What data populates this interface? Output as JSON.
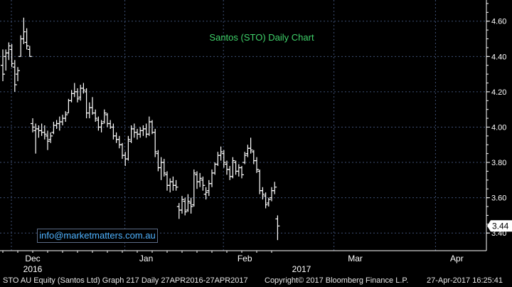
{
  "chart_data": {
    "type": "ohlc",
    "title": "Santos (STO) Daily Chart",
    "ylim": [
      3.3,
      4.72
    ],
    "y_ticks": [
      3.4,
      3.6,
      3.8,
      4.0,
      4.2,
      4.4,
      4.6
    ],
    "y_tick_labels": [
      "3.40",
      "3.60",
      "3.80",
      "4.00",
      "4.20",
      "4.40",
      "4.60"
    ],
    "last_price_label": "3.44",
    "last_price": 3.44,
    "x_month_labels": [
      {
        "label": "Dec",
        "index": 10
      },
      {
        "label": "Jan",
        "index": 48
      },
      {
        "label": "Feb",
        "index": 81
      },
      {
        "label": "Mar",
        "index": 118
      },
      {
        "label": "Apr",
        "index": 152
      }
    ],
    "x_year_labels": [
      {
        "label": "2016",
        "index": 10
      },
      {
        "label": "2017",
        "index": 100
      }
    ],
    "series": [
      {
        "values": [
          [
            4.35,
            4.44,
            4.26,
            4.3
          ],
          [
            4.4,
            4.44,
            4.32,
            4.42
          ],
          [
            4.42,
            4.48,
            4.38,
            4.46
          ],
          [
            4.44,
            4.47,
            4.34,
            4.36
          ],
          [
            4.34,
            4.38,
            4.2,
            4.24
          ],
          [
            4.3,
            4.34,
            4.26,
            4.32
          ],
          [
            4.4,
            4.52,
            4.4,
            4.5
          ],
          [
            4.5,
            4.62,
            4.47,
            4.54
          ],
          [
            4.48,
            4.56,
            4.44,
            4.46
          ],
          [
            4.44,
            4.46,
            4.4,
            4.4
          ],
          [
            4.02,
            4.05,
            3.97,
            4.0
          ],
          [
            3.98,
            4.02,
            3.85,
            3.99
          ],
          [
            3.99,
            4.01,
            3.94,
            3.98
          ],
          [
            3.98,
            4.02,
            3.95,
            3.97
          ],
          [
            3.97,
            4.01,
            3.93,
            3.96
          ],
          [
            3.95,
            3.98,
            3.87,
            3.92
          ],
          [
            3.93,
            3.97,
            3.91,
            3.95
          ],
          [
            3.97,
            4.03,
            3.96,
            4.01
          ],
          [
            4.01,
            4.04,
            3.99,
            4.02
          ],
          [
            4.02,
            4.06,
            3.98,
            4.03
          ],
          [
            4.03,
            4.07,
            4.01,
            4.05
          ],
          [
            4.05,
            4.09,
            4.03,
            4.07
          ],
          [
            4.08,
            4.16,
            4.08,
            4.15
          ],
          [
            4.15,
            4.21,
            4.14,
            4.19
          ],
          [
            4.19,
            4.25,
            4.17,
            4.2
          ],
          [
            4.2,
            4.22,
            4.14,
            4.16
          ],
          [
            4.17,
            4.24,
            4.15,
            4.22
          ],
          [
            4.22,
            4.25,
            4.19,
            4.21
          ],
          [
            4.2,
            4.22,
            4.05,
            4.08
          ],
          [
            4.08,
            4.14,
            4.05,
            4.11
          ],
          [
            4.11,
            4.17,
            4.07,
            4.08
          ],
          [
            4.08,
            4.1,
            4.03,
            4.05
          ],
          [
            4.04,
            4.06,
            3.98,
            4.0
          ],
          [
            4.0,
            4.04,
            3.97,
            4.02
          ],
          [
            4.03,
            4.1,
            4.02,
            4.08
          ],
          [
            4.07,
            4.08,
            4.0,
            4.02
          ],
          [
            4.02,
            4.04,
            3.99,
            4.0
          ],
          [
            4.0,
            4.02,
            3.93,
            3.95
          ],
          [
            3.95,
            3.97,
            3.91,
            3.93
          ],
          [
            3.93,
            3.95,
            3.88,
            3.9
          ],
          [
            3.9,
            3.91,
            3.82,
            3.84
          ],
          [
            3.84,
            3.86,
            3.78,
            3.82
          ],
          [
            3.82,
            3.95,
            3.81,
            3.93
          ],
          [
            3.92,
            4.01,
            3.91,
            3.99
          ],
          [
            3.99,
            4.02,
            3.94,
            3.97
          ],
          [
            3.97,
            3.99,
            3.93,
            3.96
          ],
          [
            3.96,
            4.0,
            3.94,
            3.98
          ],
          [
            3.98,
            4.01,
            3.95,
            3.99
          ],
          [
            3.99,
            4.02,
            3.94,
            3.96
          ],
          [
            3.96,
            4.06,
            3.95,
            4.03
          ],
          [
            4.03,
            4.04,
            3.96,
            3.97
          ],
          [
            3.97,
            3.99,
            3.83,
            3.86
          ],
          [
            3.85,
            3.87,
            3.75,
            3.77
          ],
          [
            3.77,
            3.83,
            3.7,
            3.8
          ],
          [
            3.8,
            3.82,
            3.72,
            3.74
          ],
          [
            3.73,
            3.75,
            3.64,
            3.67
          ],
          [
            3.67,
            3.71,
            3.63,
            3.69
          ],
          [
            3.69,
            3.72,
            3.64,
            3.67
          ],
          [
            3.67,
            3.7,
            3.64,
            3.66
          ],
          [
            3.55,
            3.57,
            3.48,
            3.53
          ],
          [
            3.53,
            3.61,
            3.51,
            3.59
          ],
          [
            3.58,
            3.6,
            3.5,
            3.52
          ],
          [
            3.53,
            3.62,
            3.52,
            3.58
          ],
          [
            3.57,
            3.6,
            3.51,
            3.55
          ],
          [
            3.56,
            3.76,
            3.55,
            3.74
          ],
          [
            3.73,
            3.75,
            3.65,
            3.69
          ],
          [
            3.69,
            3.74,
            3.66,
            3.71
          ],
          [
            3.7,
            3.72,
            3.64,
            3.67
          ],
          [
            3.62,
            3.66,
            3.59,
            3.63
          ],
          [
            3.64,
            3.7,
            3.61,
            3.68
          ],
          [
            3.68,
            3.76,
            3.66,
            3.74
          ],
          [
            3.74,
            3.8,
            3.73,
            3.79
          ],
          [
            3.79,
            3.86,
            3.78,
            3.84
          ],
          [
            3.84,
            3.89,
            3.81,
            3.86
          ],
          [
            3.85,
            3.87,
            3.77,
            3.8
          ],
          [
            3.79,
            3.81,
            3.73,
            3.76
          ],
          [
            3.76,
            3.78,
            3.7,
            3.72
          ],
          [
            3.72,
            3.83,
            3.71,
            3.81
          ],
          [
            3.8,
            3.81,
            3.73,
            3.75
          ],
          [
            3.75,
            3.79,
            3.72,
            3.77
          ],
          [
            3.77,
            3.78,
            3.71,
            3.73
          ],
          [
            3.8,
            3.86,
            3.79,
            3.84
          ],
          [
            3.85,
            3.9,
            3.83,
            3.88
          ],
          [
            3.88,
            3.94,
            3.85,
            3.87
          ],
          [
            3.86,
            3.87,
            3.79,
            3.81
          ],
          [
            3.81,
            3.83,
            3.74,
            3.76
          ],
          [
            3.75,
            3.76,
            3.62,
            3.64
          ],
          [
            3.64,
            3.66,
            3.59,
            3.62
          ],
          [
            3.61,
            3.63,
            3.54,
            3.56
          ],
          [
            3.57,
            3.6,
            3.55,
            3.59
          ],
          [
            3.6,
            3.66,
            3.58,
            3.64
          ],
          [
            3.64,
            3.69,
            3.62,
            3.66
          ],
          [
            3.48,
            3.5,
            3.36,
            3.44
          ]
        ]
      }
    ]
  },
  "watermark": "info@marketmatters.com.au",
  "footer": {
    "left": "STO AU Equity (Santos Ltd)  Graph 217   Daily 27APR2016-27APR2017",
    "middle": "Copyright© 2017 Bloomberg Finance L.P.",
    "right": "27-Apr-2017  16:25:41"
  },
  "colors": {
    "background": "#000000",
    "bars": "#ffffff",
    "grid": "#3e4f74",
    "title": "#3fd26a",
    "watermark": "#4fb3ff",
    "axis_text": "#ffffff"
  }
}
